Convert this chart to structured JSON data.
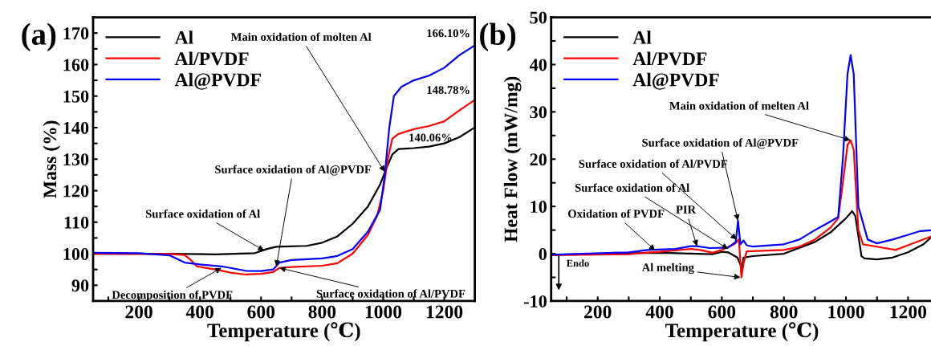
{
  "chart_data": [
    {
      "type": "line",
      "title": "(a)",
      "xlabel": "Temperature (℃)",
      "ylabel": "Mass (%)",
      "legend": "top left",
      "grid": false,
      "xlim": [
        50,
        1300
      ],
      "ylim": [
        85,
        175
      ],
      "xticks": [
        {
          "value": 100,
          "label": null
        },
        200,
        {
          "value": 300,
          "label": null
        },
        400,
        {
          "value": 500,
          "label": null
        },
        600,
        {
          "value": 700,
          "label": null
        },
        800,
        {
          "value": 900,
          "label": null
        },
        1000,
        {
          "value": 1100,
          "label": null
        },
        1200
      ],
      "yticks": [
        90,
        {
          "value": 95,
          "label": null
        },
        100,
        {
          "value": 105,
          "label": null
        },
        110,
        {
          "value": 115,
          "label": null
        },
        120,
        {
          "value": 125,
          "label": null
        },
        130,
        {
          "value": 135,
          "label": null
        },
        140,
        {
          "value": 145,
          "label": null
        },
        150,
        {
          "value": 155,
          "label": null
        },
        160,
        {
          "value": 165,
          "label": null
        },
        170
      ],
      "series": [
        {
          "name": "Al",
          "color": "#000000",
          "x": [
            50,
            300,
            450,
            580,
            620,
            650,
            750,
            800,
            850,
            900,
            950,
            990,
            1010,
            1030,
            1050,
            1100,
            1150,
            1200,
            1250,
            1300
          ],
          "values": [
            100,
            100,
            99.8,
            100.2,
            101.5,
            102.2,
            102.5,
            103.5,
            105.5,
            109.5,
            115,
            122,
            127,
            131.5,
            133.2,
            133.5,
            134,
            135,
            137,
            140.06
          ]
        },
        {
          "name": "Al/PVDF",
          "color": "#ff0000",
          "x": [
            50,
            300,
            350,
            370,
            390,
            450,
            500,
            550,
            600,
            640,
            660,
            700,
            800,
            850,
            900,
            950,
            980,
            1000,
            1015,
            1030,
            1050,
            1100,
            1150,
            1200,
            1250,
            1300
          ],
          "values": [
            100,
            99.9,
            99.6,
            98,
            96,
            95,
            94,
            93.4,
            93.6,
            94.2,
            95.5,
            95.8,
            96.2,
            97,
            100,
            106,
            112,
            120,
            130,
            136.5,
            138,
            139.5,
            140.5,
            142,
            145.5,
            148.78
          ]
        },
        {
          "name": "Al@PVDF",
          "color": "#0000ff",
          "x": [
            50,
            200,
            300,
            350,
            400,
            470,
            550,
            600,
            640,
            660,
            700,
            800,
            850,
            900,
            950,
            990,
            1005,
            1020,
            1035,
            1060,
            1100,
            1150,
            1200,
            1250,
            1300
          ],
          "values": [
            100.3,
            100.2,
            99.5,
            97.2,
            96.6,
            96,
            94.6,
            94.5,
            95,
            97.2,
            98,
            98.5,
            99.3,
            101.5,
            107,
            114,
            125,
            140,
            150,
            153,
            155,
            156.5,
            159,
            163,
            166.1
          ]
        }
      ],
      "annotations": [
        {
          "text": "Main oxidation of molten Al",
          "x": 1005,
          "y": 126
        },
        {
          "text": "Surface oxidation of Al@PVDF",
          "x": 650,
          "y": 96
        },
        {
          "text": "Surface oxidation of Al",
          "x": 610,
          "y": 101
        },
        {
          "text": "Decomposition of PVDF",
          "x": 470,
          "y": 95.5
        },
        {
          "text": "Surface oxidation of Al/PVDF",
          "x": 660,
          "y": 95.5
        },
        {
          "text": "166.10%",
          "x": 1300,
          "y": 166.1
        },
        {
          "text": "148.78%",
          "x": 1300,
          "y": 148.78
        },
        {
          "text": "140.06%",
          "x": 1300,
          "y": 140.06
        }
      ]
    },
    {
      "type": "line",
      "title": "(b)",
      "xlabel": "Temperature (℃)",
      "ylabel": "Heat Flow (mW/mg)",
      "legend": "top left",
      "grid": false,
      "xlim": [
        50,
        1280
      ],
      "ylim": [
        -10,
        50
      ],
      "xticks": [
        {
          "value": 100,
          "label": null
        },
        200,
        {
          "value": 300,
          "label": null
        },
        400,
        {
          "value": 500,
          "label": null
        },
        600,
        {
          "value": 700,
          "label": null
        },
        800,
        {
          "value": 900,
          "label": null
        },
        1000,
        {
          "value": 1100,
          "label": null
        },
        1200
      ],
      "yticks": [
        -10,
        {
          "value": -5,
          "label": null
        },
        0,
        {
          "value": 5,
          "label": null
        },
        10,
        {
          "value": 15,
          "label": null
        },
        20,
        {
          "value": 25,
          "label": null
        },
        30,
        {
          "value": 35,
          "label": null
        },
        40,
        {
          "value": 45,
          "label": null
        },
        50
      ],
      "series": [
        {
          "name": "Al",
          "color": "#000000",
          "x": [
            50,
            300,
            400,
            570,
            600,
            620,
            650,
            665,
            670,
            700,
            800,
            900,
            950,
            1000,
            1020,
            1030,
            1050,
            1060,
            1100,
            1150,
            1200,
            1250,
            1280
          ],
          "values": [
            -0.2,
            0.1,
            0.2,
            -0.1,
            0.4,
            0.3,
            -0.8,
            -3,
            -0.8,
            -0.5,
            0,
            2.5,
            4.5,
            7.5,
            9,
            8,
            -0.5,
            -1,
            -1.2,
            -0.8,
            0.3,
            2,
            3.8
          ]
        },
        {
          "name": "Al/PVDF",
          "color": "#ff0000",
          "x": [
            50,
            300,
            350,
            400,
            500,
            530,
            570,
            600,
            640,
            655,
            663,
            670,
            680,
            800,
            850,
            900,
            950,
            975,
            990,
            1005,
            1015,
            1025,
            1040,
            1055,
            1100,
            1160,
            1200,
            1280
          ],
          "values": [
            -0.3,
            -0.1,
            0.2,
            0.4,
            1.0,
            0.8,
            0.2,
            0.8,
            2,
            3,
            -5,
            -2,
            0.5,
            0.8,
            1.5,
            3,
            5.5,
            7.5,
            15,
            23,
            24,
            22,
            5,
            2,
            1.5,
            0.8,
            1.8,
            3.8
          ]
        },
        {
          "name": "Al@PVDF",
          "color": "#0000ff",
          "x": [
            50,
            300,
            360,
            450,
            500,
            520,
            560,
            620,
            645,
            652,
            660,
            670,
            680,
            700,
            800,
            850,
            900,
            950,
            975,
            990,
            1005,
            1015,
            1025,
            1040,
            1070,
            1100,
            1150,
            1200,
            1240,
            1280
          ],
          "values": [
            -0.2,
            0.3,
            0.8,
            1,
            1.6,
            1.6,
            1.2,
            1.3,
            2.5,
            7,
            2,
            2.8,
            1.8,
            1.5,
            2,
            3,
            5,
            6.8,
            7.8,
            20,
            38,
            42,
            38,
            10,
            3,
            2.2,
            3,
            4,
            4.8,
            5
          ]
        }
      ],
      "annotations": [
        {
          "text": "Main oxidation of melten Al",
          "x": 1015,
          "y": 24
        },
        {
          "text": "Surface oxidation of Al@PVDF",
          "x": 652,
          "y": 7
        },
        {
          "text": "Surface oxidation of Al/PVDF",
          "x": 648,
          "y": 3
        },
        {
          "text": "Surface oxidation of Al",
          "x": 620,
          "y": 1
        },
        {
          "text": "Oxidation of PVDF",
          "x": 385,
          "y": 0.7
        },
        {
          "text": "PIR",
          "x": 520,
          "y": 1.6
        },
        {
          "text": "Al melting",
          "x": 660,
          "y": -5
        },
        "Endo"
      ]
    }
  ]
}
